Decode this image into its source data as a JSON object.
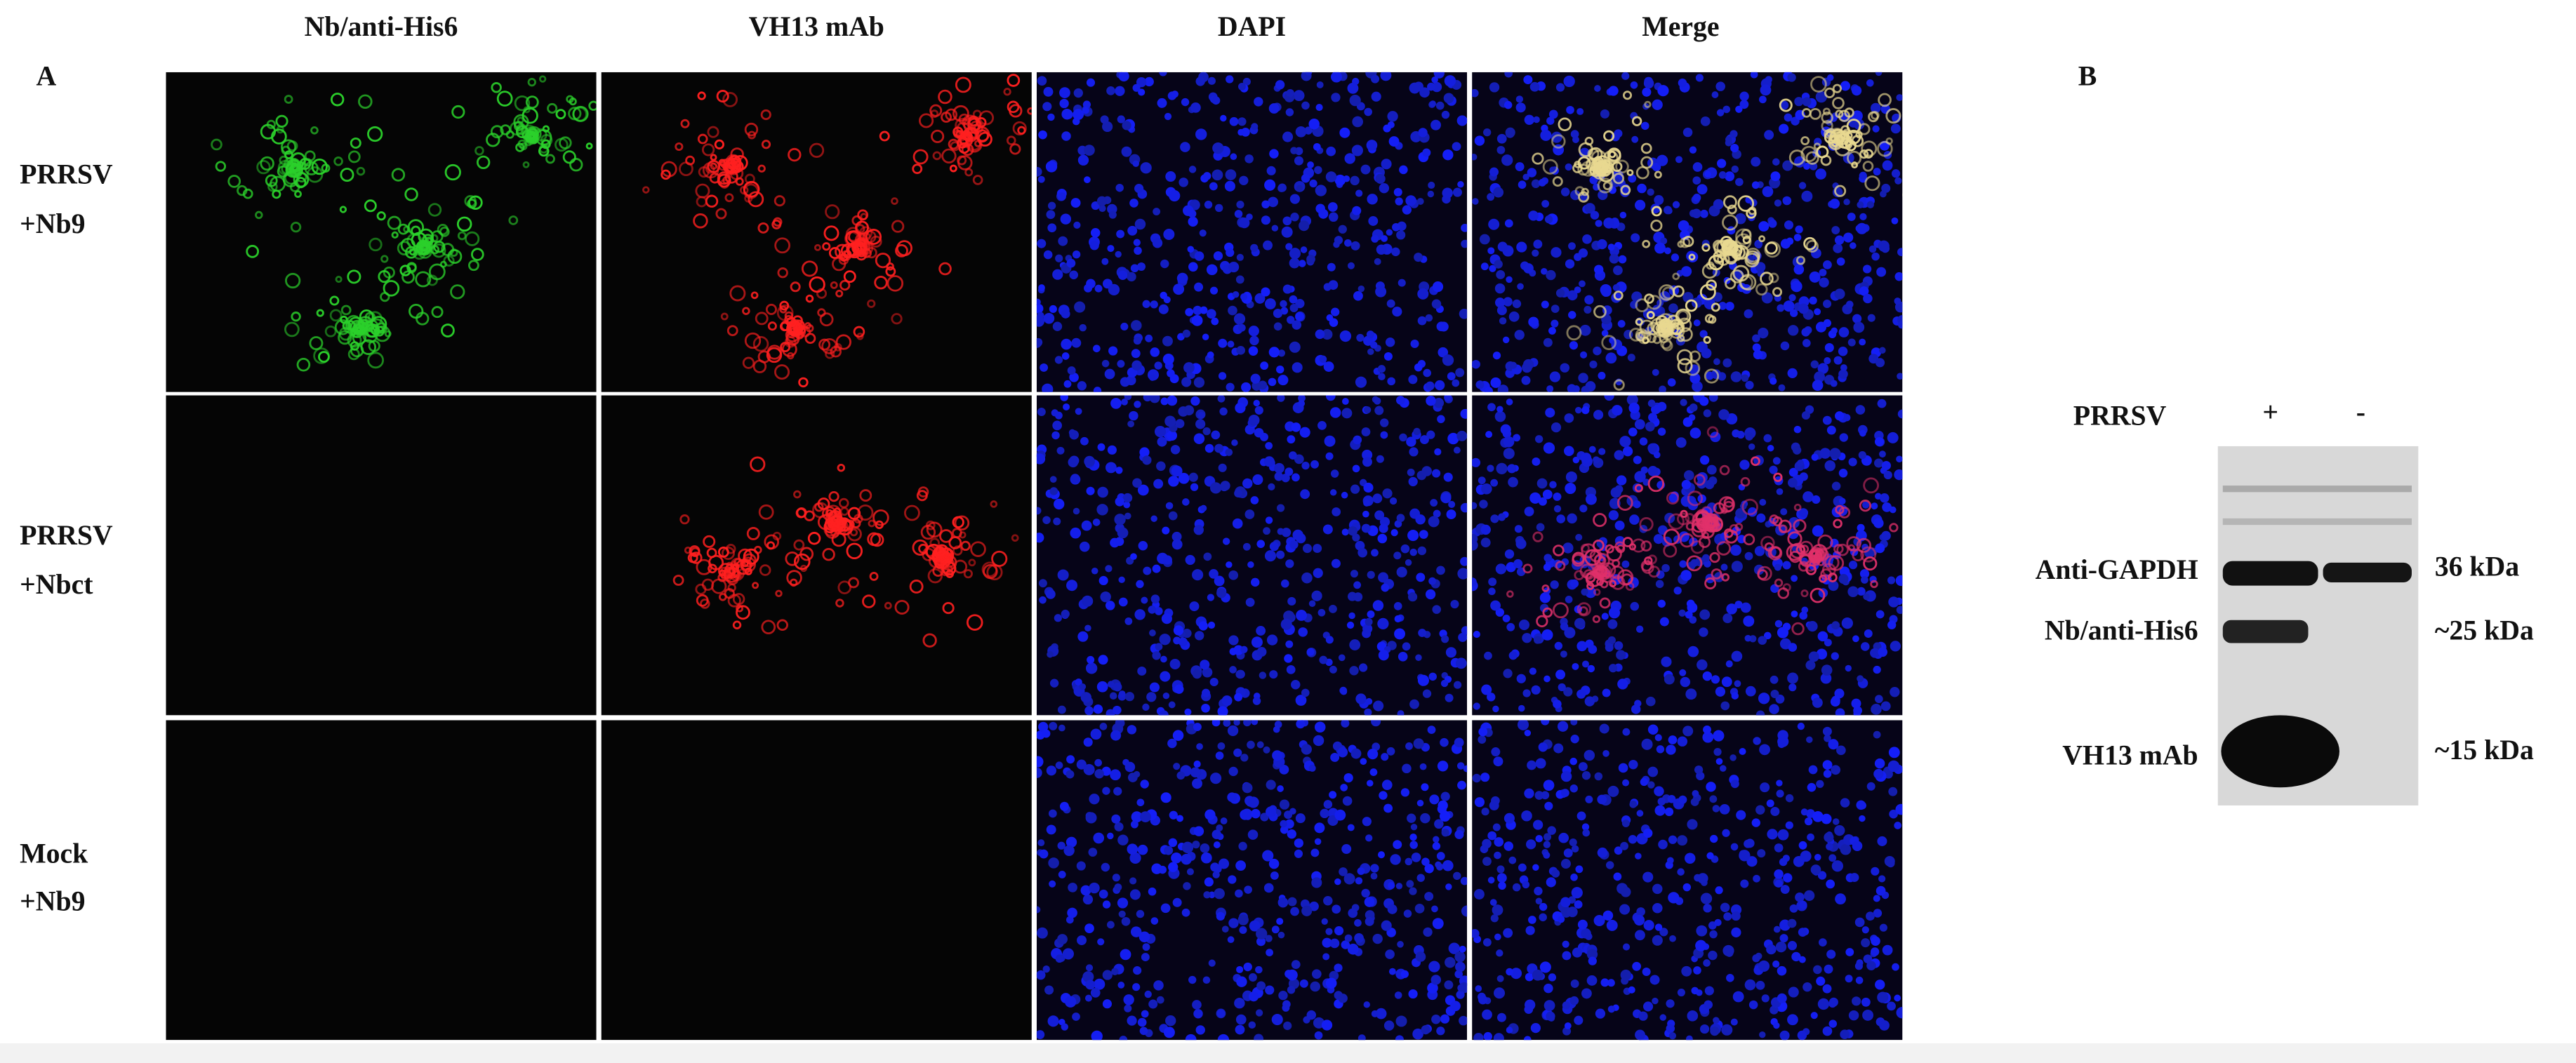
{
  "panel_a": {
    "label": "A",
    "column_headers": [
      "Nb/anti-His6",
      "VH13 mAb",
      "DAPI",
      "Merge"
    ],
    "rows": [
      {
        "line1": "PRRSV",
        "line2": "+Nb9"
      },
      {
        "line1": "PRRSV",
        "line2": "+Nbct"
      },
      {
        "line1": "Mock",
        "line2": "+Nb9"
      }
    ]
  },
  "panel_b": {
    "label": "B",
    "lane_header": "PRRSV",
    "lanes": [
      "+",
      "-"
    ],
    "band_labels": [
      "Anti-GAPDH",
      "Nb/anti-His6",
      "VH13 mAb"
    ],
    "size_labels": [
      "36 kDa",
      "~25 kDa",
      "~15 kDa"
    ]
  }
}
